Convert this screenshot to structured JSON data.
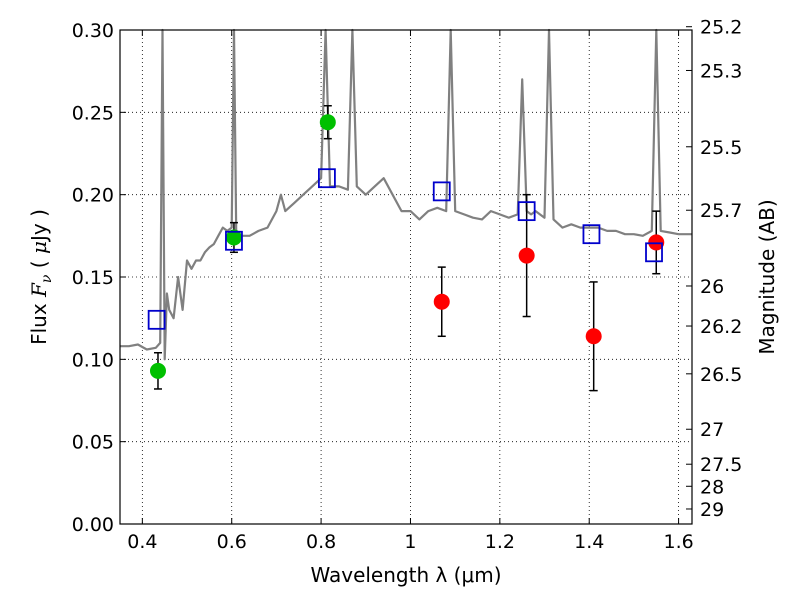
{
  "chart_data": {
    "type": "scatter",
    "title": "",
    "xlabel": "Wavelength  λ (μm)",
    "ylabel": "Flux  F_ν  ( μJy )",
    "y2label": "Magnitude (AB)",
    "xlim": [
      0.35,
      1.63
    ],
    "ylim": [
      0.0,
      0.3
    ],
    "grid": true,
    "x_ticks": [
      0.4,
      0.6,
      0.8,
      1.0,
      1.2,
      1.4,
      1.6
    ],
    "x_tick_labels": [
      "0.4",
      "0.6",
      "0.8",
      "1",
      "1.2",
      "1.4",
      "1.6"
    ],
    "y_ticks": [
      0.0,
      0.05,
      0.1,
      0.15,
      0.2,
      0.25,
      0.3
    ],
    "y_tick_labels": [
      "0.00",
      "0.05",
      "0.10",
      "0.15",
      "0.20",
      "0.25",
      "0.30"
    ],
    "mag_ticks": [
      "25.2",
      "25.3",
      "25.5",
      "25.7",
      "26",
      "26.2",
      "26.5",
      "27",
      "27.5",
      "28",
      "29"
    ],
    "series": [
      {
        "kind": "spectrum",
        "color": "#808080",
        "x": [
          0.35,
          0.37,
          0.39,
          0.41,
          0.43,
          0.44,
          0.445,
          0.45,
          0.455,
          0.46,
          0.47,
          0.48,
          0.49,
          0.5,
          0.51,
          0.52,
          0.53,
          0.54,
          0.55,
          0.56,
          0.57,
          0.58,
          0.59,
          0.6,
          0.605,
          0.61,
          0.62,
          0.64,
          0.66,
          0.68,
          0.7,
          0.71,
          0.72,
          0.74,
          0.76,
          0.78,
          0.8,
          0.81,
          0.82,
          0.84,
          0.86,
          0.87,
          0.88,
          0.9,
          0.92,
          0.94,
          0.96,
          0.98,
          1.0,
          1.02,
          1.04,
          1.06,
          1.08,
          1.09,
          1.1,
          1.12,
          1.14,
          1.16,
          1.18,
          1.2,
          1.22,
          1.24,
          1.25,
          1.26,
          1.27,
          1.28,
          1.3,
          1.31,
          1.32,
          1.34,
          1.36,
          1.38,
          1.4,
          1.42,
          1.44,
          1.46,
          1.48,
          1.5,
          1.52,
          1.54,
          1.55,
          1.56,
          1.58,
          1.6,
          1.63
        ],
        "y": [
          0.108,
          0.108,
          0.109,
          0.106,
          0.107,
          0.11,
          0.3,
          0.1,
          0.14,
          0.13,
          0.125,
          0.15,
          0.13,
          0.16,
          0.155,
          0.16,
          0.16,
          0.165,
          0.168,
          0.17,
          0.175,
          0.18,
          0.178,
          0.18,
          0.3,
          0.178,
          0.175,
          0.175,
          0.178,
          0.18,
          0.19,
          0.2,
          0.19,
          0.195,
          0.2,
          0.205,
          0.21,
          0.3,
          0.205,
          0.205,
          0.203,
          0.3,
          0.205,
          0.2,
          0.205,
          0.21,
          0.2,
          0.19,
          0.19,
          0.185,
          0.19,
          0.192,
          0.19,
          0.3,
          0.19,
          0.188,
          0.186,
          0.185,
          0.19,
          0.188,
          0.186,
          0.188,
          0.27,
          0.19,
          0.188,
          0.19,
          0.186,
          0.3,
          0.185,
          0.18,
          0.182,
          0.18,
          0.18,
          0.18,
          0.178,
          0.178,
          0.176,
          0.176,
          0.175,
          0.178,
          0.3,
          0.178,
          0.177,
          0.176,
          0.176
        ]
      },
      {
        "kind": "points",
        "marker": "circle",
        "color": "#00c000",
        "x": [
          0.435,
          0.605,
          0.815
        ],
        "y": [
          0.093,
          0.174,
          0.244
        ],
        "yerr": [
          0.011,
          0.009,
          0.01
        ]
      },
      {
        "kind": "points",
        "marker": "circle",
        "color": "#ff0000",
        "x": [
          1.07,
          1.26,
          1.41,
          1.55
        ],
        "y": [
          0.135,
          0.163,
          0.114,
          0.171
        ],
        "yerr": [
          0.021,
          0.037,
          0.033,
          0.019
        ]
      },
      {
        "kind": "points",
        "marker": "open-square",
        "color": "#0000cc",
        "x": [
          0.432,
          0.605,
          0.813,
          1.07,
          1.26,
          1.405,
          1.545
        ],
        "y": [
          0.124,
          0.172,
          0.21,
          0.202,
          0.19,
          0.176,
          0.165
        ]
      }
    ]
  }
}
